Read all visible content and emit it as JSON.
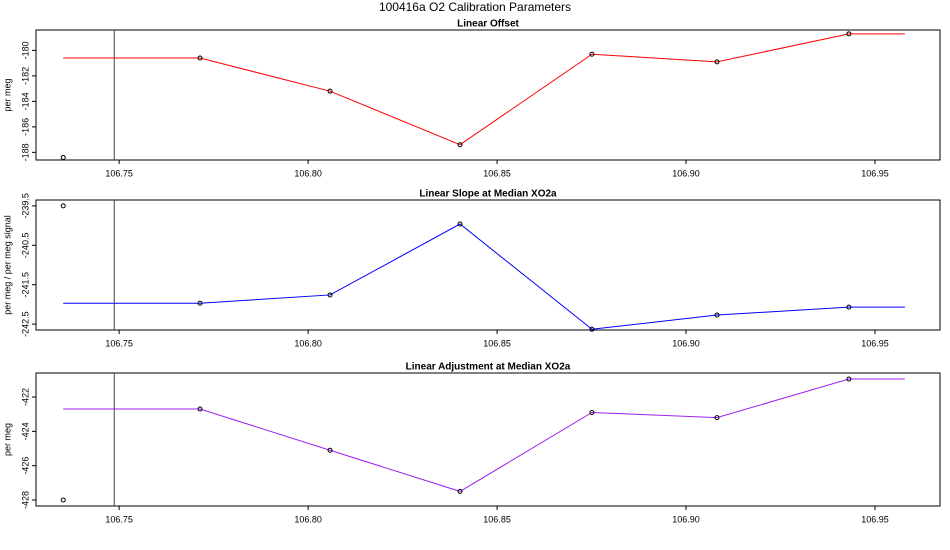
{
  "title": "100416a   O2 Calibration Parameters",
  "chart_data": [
    {
      "type": "line",
      "title": "Linear Offset",
      "ylabel": "per meg",
      "xlim": [
        106.728,
        106.9672
      ],
      "xticks": [
        106.75,
        {
          "value": 106.8,
          "label": "106.80"
        },
        106.85,
        {
          "value": 106.9,
          "label": "106.90"
        },
        106.95
      ],
      "ylim": [
        -188.6,
        -178.4
      ],
      "yticks": [
        -180,
        -182,
        -184,
        -186,
        -188
      ],
      "vline": 106.7487,
      "series": [
        {
          "color": "#ff0000",
          "markers": false,
          "x": [
            106.7352,
            106.7714,
            106.8058,
            106.8402,
            106.8751,
            106.9082,
            106.9431,
            106.9579
          ],
          "values": [
            -180.6,
            -180.6,
            -183.2,
            -187.4,
            -180.3,
            -180.9,
            -178.7,
            -178.7
          ]
        },
        {
          "color": "#000000",
          "markers": true,
          "line": false,
          "x": [
            106.7352,
            106.7714,
            106.8058,
            106.8402,
            106.8751,
            106.9082,
            106.9431
          ],
          "values": [
            -188.4,
            -180.6,
            -183.2,
            -187.4,
            -180.3,
            -180.9,
            -178.7
          ]
        }
      ]
    },
    {
      "type": "line",
      "title": "Linear Slope at Median XO2a",
      "ylabel": "per meg / per meg signal",
      "xlim": [
        106.728,
        106.9672
      ],
      "xticks": [
        106.75,
        {
          "value": 106.8,
          "label": "106.80"
        },
        106.85,
        {
          "value": 106.9,
          "label": "106.90"
        },
        106.95
      ],
      "ylim": [
        -242.65,
        -239.35
      ],
      "yticks": [
        -239.5,
        -240.5,
        -241.5,
        -242.5
      ],
      "vline": 106.7487,
      "series": [
        {
          "color": "#0000ff",
          "markers": false,
          "x": [
            106.7352,
            106.7714,
            106.8058,
            106.8402,
            106.8751,
            106.9082,
            106.9431,
            106.9579
          ],
          "values": [
            -241.97,
            -241.97,
            -241.76,
            -239.96,
            -242.63,
            -242.27,
            -242.07,
            -242.07
          ]
        },
        {
          "color": "#000000",
          "markers": true,
          "line": false,
          "x": [
            106.7352,
            106.7714,
            106.8058,
            106.8402,
            106.8751,
            106.9082,
            106.9431
          ],
          "values": [
            -239.5,
            -241.97,
            -241.76,
            -239.96,
            -242.63,
            -242.27,
            -242.07
          ]
        }
      ]
    },
    {
      "type": "line",
      "title": "Linear Adjustment at Median XO2a",
      "ylabel": "per meg",
      "xlim": [
        106.728,
        106.9672
      ],
      "xticks": [
        106.75,
        {
          "value": 106.8,
          "label": "106.80"
        },
        106.85,
        {
          "value": 106.9,
          "label": "106.90"
        },
        106.95
      ],
      "ylim": [
        -428.35,
        -420.6
      ],
      "yticks": [
        -422,
        -424,
        -426,
        -428
      ],
      "vline": 106.7487,
      "series": [
        {
          "color": "#a020f0",
          "markers": false,
          "x": [
            106.7352,
            106.7714,
            106.8058,
            106.8402,
            106.8751,
            106.9082,
            106.9431,
            106.9579
          ],
          "values": [
            -422.7,
            -422.7,
            -425.1,
            -427.5,
            -422.9,
            -423.2,
            -420.95,
            -420.95
          ]
        },
        {
          "color": "#000000",
          "markers": true,
          "line": false,
          "x": [
            106.7352,
            106.7714,
            106.8058,
            106.8402,
            106.8751,
            106.9082,
            106.9431
          ],
          "values": [
            -428.0,
            -422.7,
            -425.1,
            -427.5,
            -422.9,
            -423.2,
            -420.95
          ]
        }
      ]
    }
  ]
}
